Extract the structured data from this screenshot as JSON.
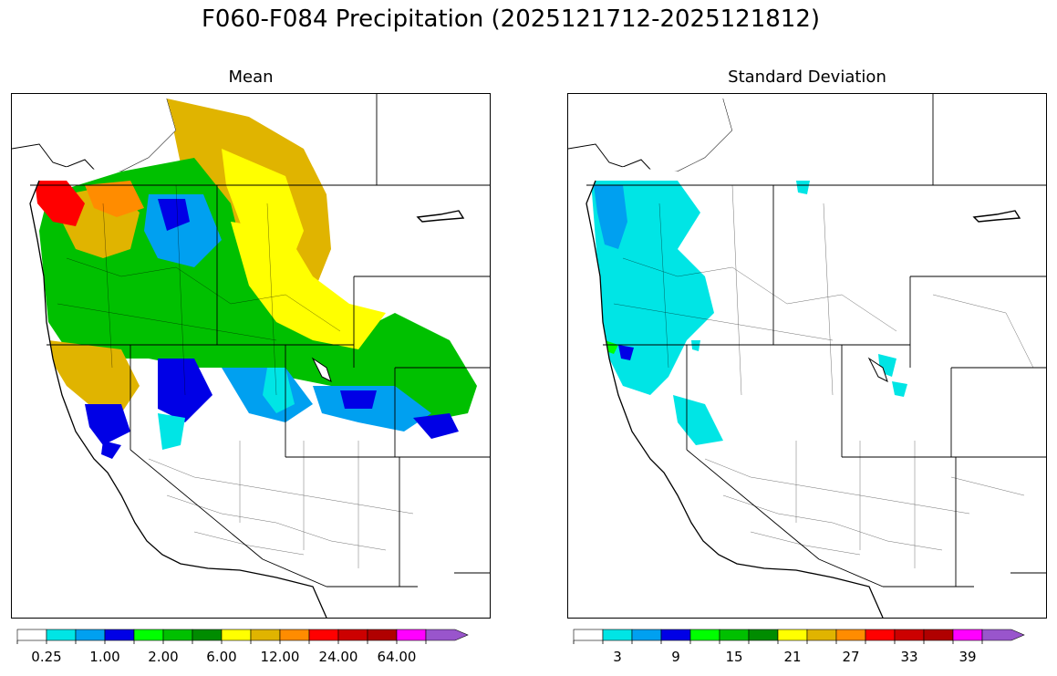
{
  "title": "F060-F084 Precipitation (2025121712-2025121812)",
  "panels": [
    {
      "title": "Mean",
      "colorbar": {
        "colors": [
          "#ffffff",
          "#00e5e5",
          "#00a0f0",
          "#0000e6",
          "#00ff00",
          "#00c000",
          "#008c00",
          "#ffff00",
          "#e0b400",
          "#ff8c00",
          "#ff0000",
          "#cc0000",
          "#b00000",
          "#ff00ff",
          "#9955cc"
        ],
        "extend": "max",
        "tick_labels": [
          "0.25",
          "1.00",
          "2.00",
          "6.00",
          "12.00",
          "24.00",
          "64.00"
        ]
      }
    },
    {
      "title": "Standard Deviation",
      "colorbar": {
        "colors": [
          "#ffffff",
          "#00e5e5",
          "#00a0f0",
          "#0000e6",
          "#00ff00",
          "#00c000",
          "#008c00",
          "#ffff00",
          "#e0b400",
          "#ff8c00",
          "#ff0000",
          "#cc0000",
          "#b00000",
          "#ff00ff",
          "#9955cc"
        ],
        "extend": "max",
        "tick_labels": [
          "3",
          "9",
          "15",
          "21",
          "27",
          "33",
          "39"
        ]
      }
    }
  ]
}
